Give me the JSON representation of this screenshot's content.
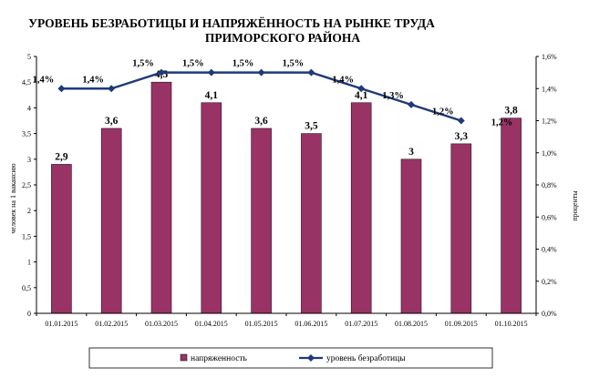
{
  "chart_data": {
    "type": "bar",
    "title_lines": [
      "УРОВЕНЬ БЕЗРАБОТИЦЫ И НАПРЯЖЁННОСТЬ НА РЫНКЕ ТРУДА",
      "ПРИМОРСКОГО  РАЙОНА"
    ],
    "categories": [
      "01.01.2015",
      "01.02.2015",
      "01.03.2015",
      "01.04.2015",
      "01.05.2015",
      "01.06.2015",
      "01.07.2015",
      "01.08.2015",
      "01.09.2015",
      "01.10.2015"
    ],
    "ylabel_left": "человек на 1 вакансию",
    "ylabel_right": "проценты",
    "ylim_left": [
      0,
      5
    ],
    "yticks_left": [
      "0",
      "0,5",
      "1",
      "1,5",
      "2",
      "2,5",
      "3",
      "3,5",
      "4",
      "4,5",
      "5"
    ],
    "ylim_right": [
      0,
      1.6
    ],
    "yticks_right": [
      "0,0%",
      "0,2%",
      "0,4%",
      "0,6%",
      "0,8%",
      "1,0%",
      "1,2%",
      "1,4%",
      "1,6%"
    ],
    "series": [
      {
        "name": "напряженность",
        "kind": "bar",
        "axis": "left",
        "color": "#993366",
        "values": [
          2.9,
          3.6,
          4.5,
          4.1,
          3.6,
          3.5,
          4.1,
          3.0,
          3.3,
          3.8
        ],
        "labels": [
          "2,9",
          "3,6",
          "4,5",
          "4,1",
          "3,6",
          "3,5",
          "4,1",
          "3",
          "3,3",
          "3,8"
        ]
      },
      {
        "name": "уровень безработицы",
        "kind": "line",
        "axis": "right",
        "color": "#1f3a7a",
        "values": [
          1.4,
          1.4,
          1.5,
          1.5,
          1.5,
          1.5,
          1.4,
          1.3,
          1.2,
          1.2
        ],
        "labels": [
          "1,4%",
          "1,4%",
          "1,5%",
          "1,5%",
          "1,5%",
          "1,5%",
          "1,4%",
          "1,3%",
          "1,2%",
          "1,2%"
        ]
      }
    ],
    "grid": false,
    "legend_position": "bottom"
  }
}
